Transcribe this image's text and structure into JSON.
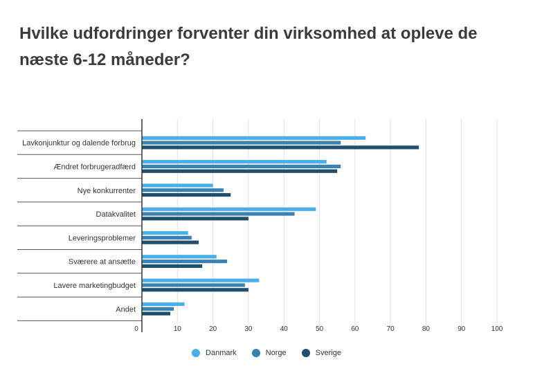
{
  "chart_data": {
    "type": "bar",
    "orientation": "horizontal",
    "title": "Hvilke udfordringer forventer din virksomhed at opleve de næste 6-12 måneder?",
    "categories": [
      "Lavkonjunktur og dalende forbrug",
      "Ændret forbrugeradfærd",
      "Nye konkurrenter",
      "Datakvalitet",
      "Leveringsproblemer",
      "Sværere at ansætte",
      "Lavere marketingbudget",
      "Andet"
    ],
    "series": [
      {
        "name": "Danmark",
        "color": "#4aaee8",
        "values": [
          63,
          52,
          20,
          49,
          13,
          21,
          33,
          12
        ]
      },
      {
        "name": "Norge",
        "color": "#3b82b4",
        "values": [
          56,
          56,
          23,
          43,
          14,
          24,
          29,
          9
        ]
      },
      {
        "name": "Sverige",
        "color": "#1f4e6e",
        "values": [
          78,
          55,
          25,
          30,
          16,
          17,
          30,
          8
        ]
      }
    ],
    "xlim": [
      0,
      100
    ],
    "xticks": [
      0,
      10,
      20,
      30,
      40,
      50,
      60,
      70,
      80,
      90,
      100
    ],
    "grid": true,
    "legend_position": "bottom"
  }
}
